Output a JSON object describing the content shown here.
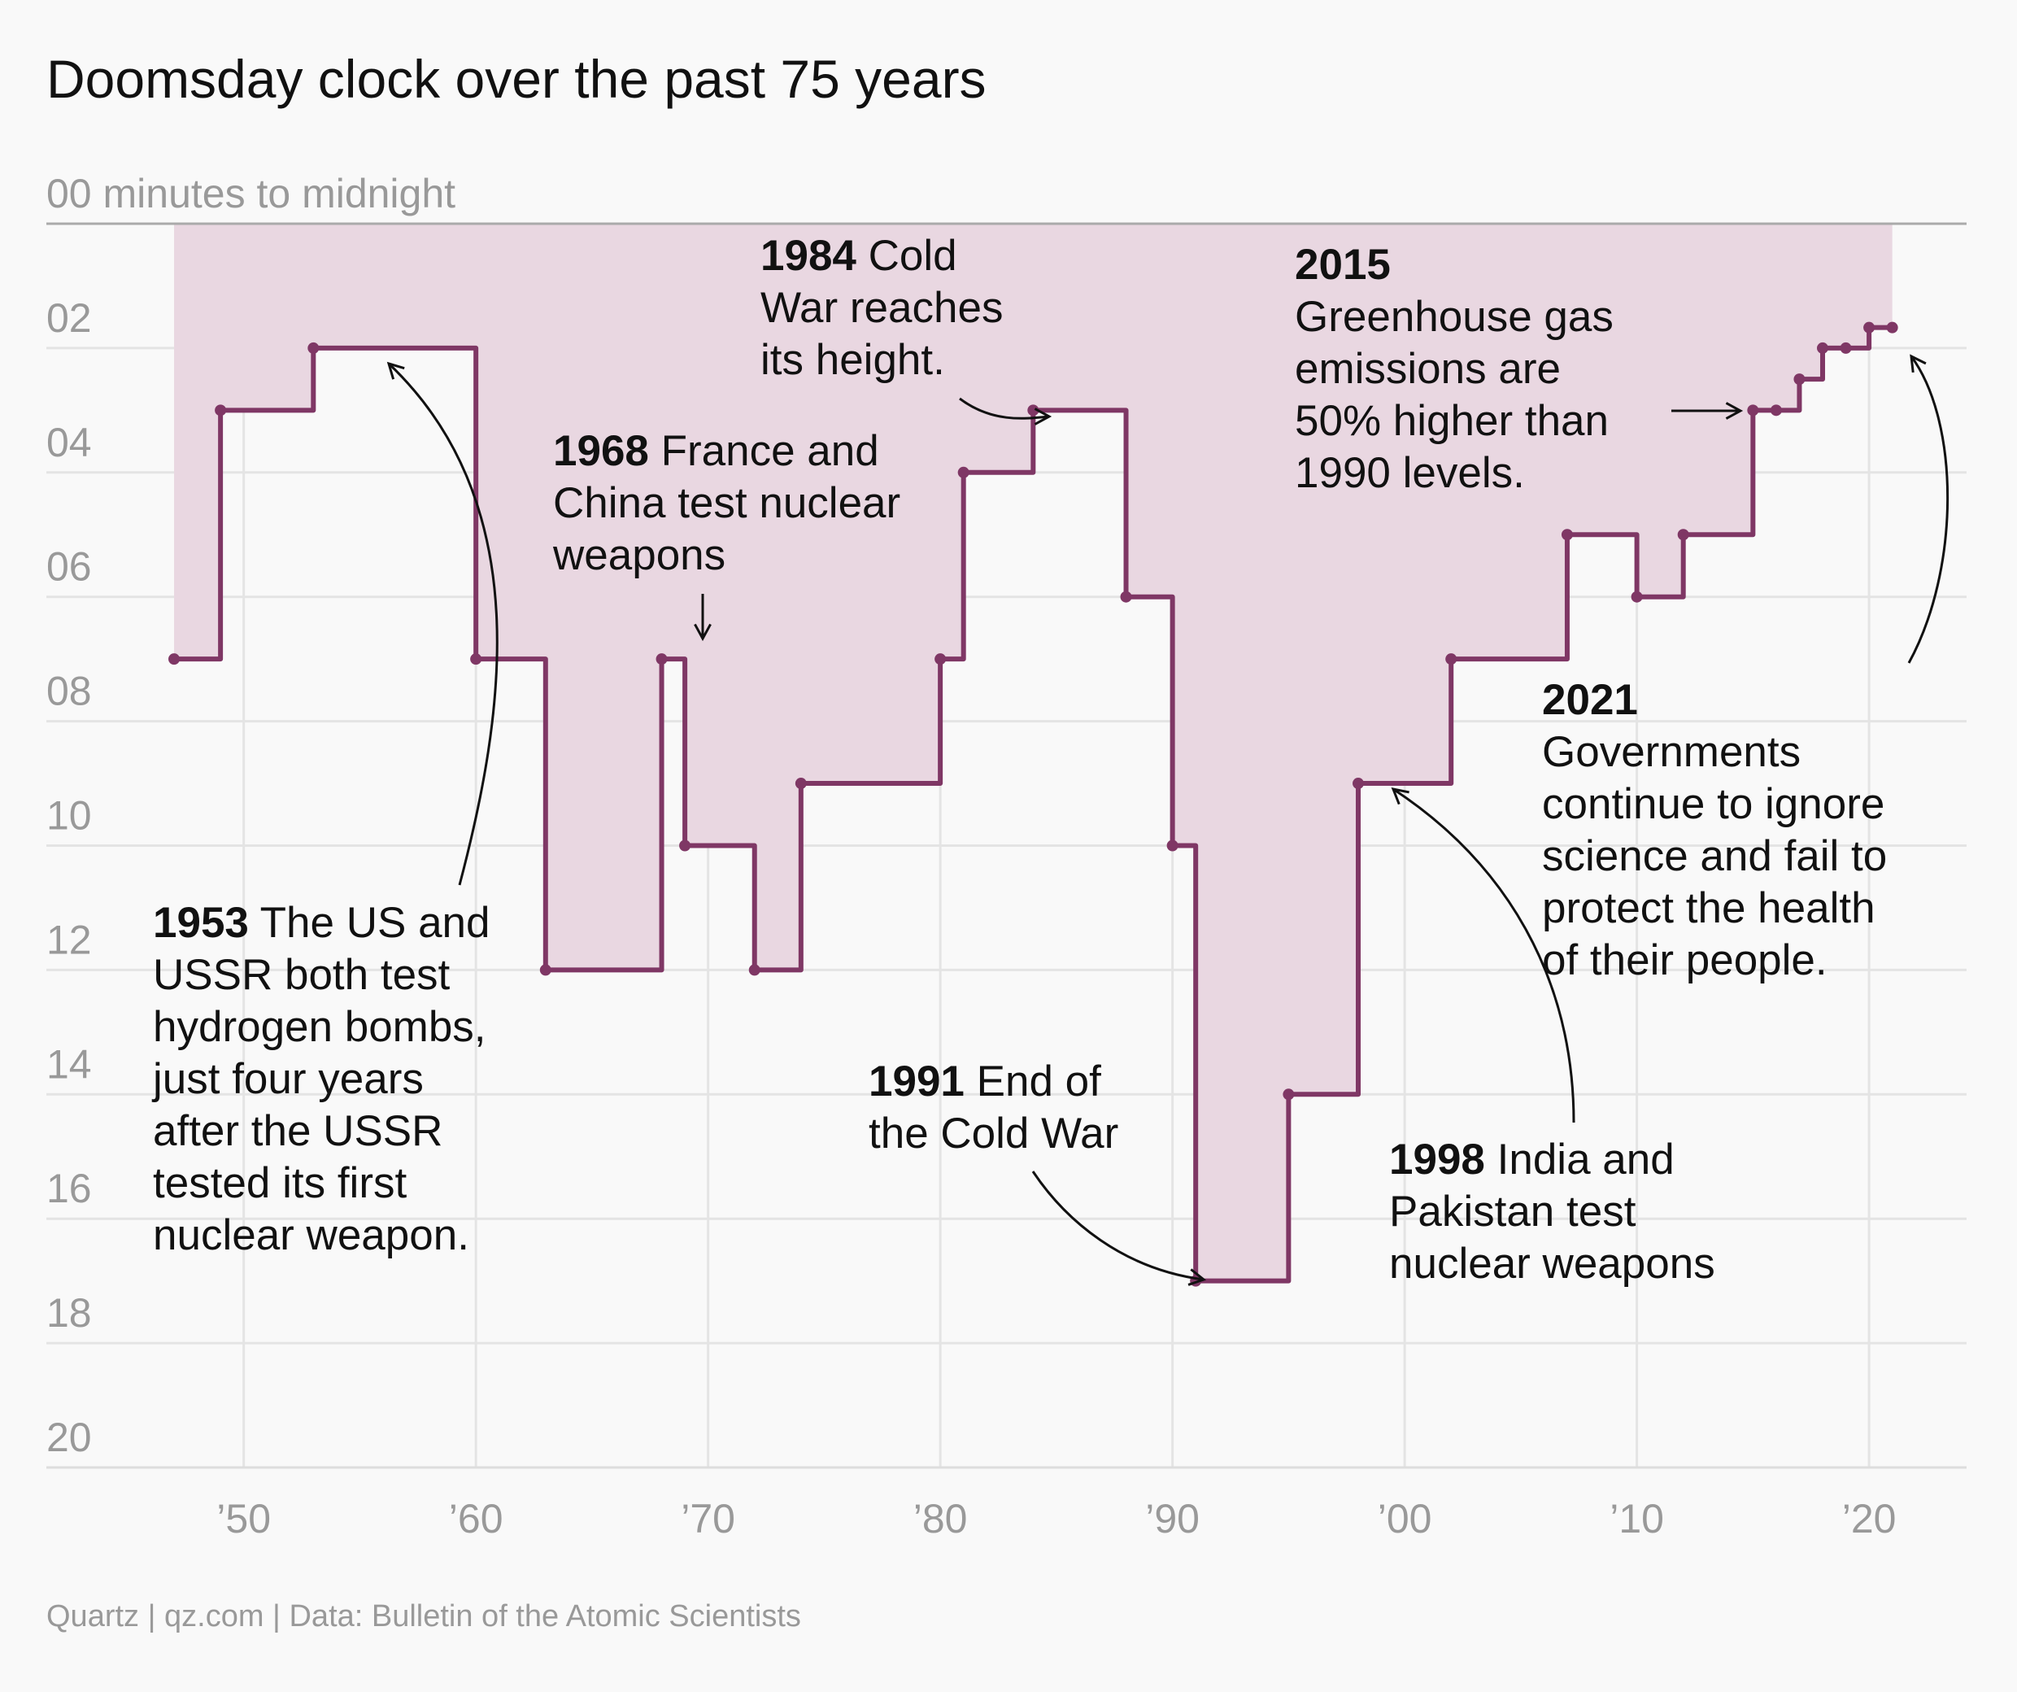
{
  "chart_data": {
    "type": "area",
    "title": "Doomsday clock over the past 75 years",
    "ylabel": "00 minutes to midnight",
    "y_tick_labels": [
      "02",
      "04",
      "06",
      "08",
      "10",
      "12",
      "14",
      "16",
      "18",
      "20"
    ],
    "y_ticks": [
      2,
      4,
      6,
      8,
      10,
      12,
      14,
      16,
      18,
      20
    ],
    "ylim": [
      0,
      20
    ],
    "y_inverted": true,
    "x_tick_labels": [
      "’50",
      "’60",
      "’70",
      "’80",
      "’90",
      "’00",
      "’10",
      "’20"
    ],
    "x_ticks": [
      1950,
      1960,
      1970,
      1980,
      1990,
      2000,
      2010,
      2020
    ],
    "xlim": [
      1941.5,
      2024.2
    ],
    "grid": true,
    "color": "#7f3765",
    "fill_color": "#e9d7e1",
    "series": [
      {
        "x": [
          1947,
          1949,
          1953,
          1960,
          1963,
          1968,
          1969,
          1972,
          1974,
          1980,
          1981,
          1984,
          1988,
          1990,
          1991,
          1995,
          1998,
          2002,
          2007,
          2010,
          2012,
          2015,
          2016,
          2017,
          2018,
          2019,
          2020,
          2021
        ],
        "y": [
          7,
          3,
          2,
          7,
          12,
          7,
          10,
          12,
          9,
          7,
          4,
          3,
          6,
          10,
          17,
          14,
          9,
          7,
          5,
          6,
          5,
          3,
          3,
          2.5,
          2,
          2,
          1.67,
          1.67
        ]
      }
    ],
    "annotations": [
      {
        "year": "1953",
        "text": " The US and|USSR both test|hydrogen bombs,|just four years|after the USSR|tested its first|nuclear weapon."
      },
      {
        "year": "1968",
        "text": " France and|China test nuclear|weapons"
      },
      {
        "year": "1984",
        "text": " Cold|War reaches|its height."
      },
      {
        "year": "1991",
        "text": " End of|the Cold War"
      },
      {
        "year": "1998",
        "text": " India and|Pakistan test|nuclear weapons"
      },
      {
        "year": "2015",
        "text": "|Greenhouse gas|emissions are|50% higher than|1990 levels."
      },
      {
        "year": "2021",
        "text": "|Governments|continue to ignore|science and fail to|protect the health|of their people."
      }
    ],
    "source": "Quartz | qz.com | Data: Bulletin of the Atomic Scientists"
  }
}
